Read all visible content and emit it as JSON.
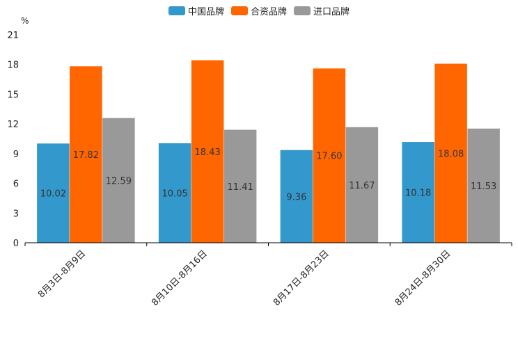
{
  "chart_data": {
    "type": "bar",
    "unit_label": "%",
    "categories": [
      "8月3日-8月9日",
      "8月10日-8月16日",
      "8月17日-8月23日",
      "8月24日-8月30日"
    ],
    "series": [
      {
        "name": "中国品牌",
        "color": "#3399cc",
        "values": [
          10.02,
          10.05,
          9.36,
          10.18
        ],
        "labels": [
          "10.02",
          "10.05",
          "9.36",
          "10.18"
        ]
      },
      {
        "name": "合资品牌",
        "color": "#ff6600",
        "values": [
          17.82,
          18.43,
          17.6,
          18.08
        ],
        "labels": [
          "17.82",
          "18.43",
          "17.60",
          "18.08"
        ]
      },
      {
        "name": "进口品牌",
        "color": "#999999",
        "values": [
          12.59,
          11.41,
          11.67,
          11.53
        ],
        "labels": [
          "12.59",
          "11.41",
          "11.67",
          "11.53"
        ]
      }
    ],
    "ylim": [
      0,
      21
    ],
    "yticks": [
      0,
      3,
      6,
      9,
      12,
      15,
      18,
      21
    ],
    "legend_position": "top-center",
    "grid": false
  }
}
